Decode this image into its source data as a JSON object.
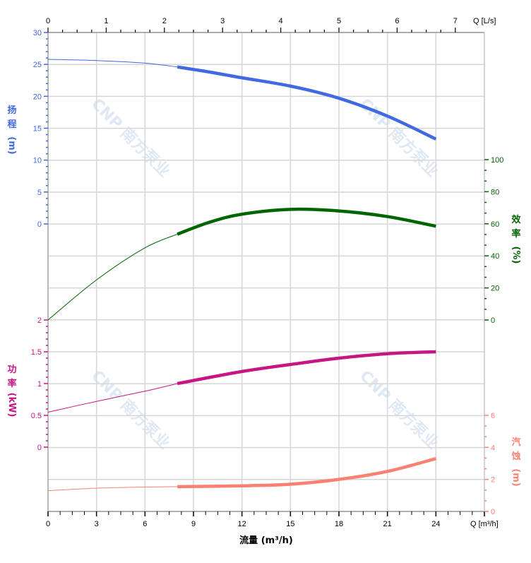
{
  "chart_data": {
    "type": "line",
    "title": "",
    "xlabel": "流量 (m³/h)",
    "x_unit_label": "Q [m³/h]",
    "x_top_unit_label": "Q [L/s]",
    "xlim": [
      0,
      27
    ],
    "x_ticks": [
      0,
      3,
      6,
      9,
      12,
      15,
      18,
      21,
      24
    ],
    "x_top_ticks": [
      0,
      1,
      2,
      3,
      4,
      5,
      6,
      7
    ],
    "grid": true,
    "watermark": "CNP 南方泵业",
    "axes": {
      "head": {
        "label_chars": [
          "扬",
          "程"
        ],
        "unit": "(m)",
        "ticks": [
          0,
          5,
          10,
          15,
          20,
          25,
          30
        ],
        "ylim": [
          0,
          30
        ],
        "color": "#4169e1",
        "side": "left"
      },
      "efficiency": {
        "label_chars": [
          "效",
          "率"
        ],
        "unit": "(%)",
        "ticks": [
          0,
          20,
          40,
          60,
          80,
          100
        ],
        "ylim": [
          0,
          100
        ],
        "color": "#006400",
        "side": "right"
      },
      "power": {
        "label_chars": [
          "功",
          "率"
        ],
        "unit": "(kW)",
        "ticks": [
          0,
          0.5,
          1,
          1.5,
          2
        ],
        "ylim": [
          0,
          2
        ],
        "color": "#c71585",
        "side": "left"
      },
      "npsh": {
        "label_chars": [
          "汽",
          "蚀"
        ],
        "unit": "(m)",
        "ticks": [
          0,
          2,
          4,
          6
        ],
        "ylim": [
          0,
          6
        ],
        "color": "#fa8072",
        "side": "right"
      }
    },
    "operating_range": [
      8,
      24
    ],
    "series": [
      {
        "axis": "head",
        "x": [
          0,
          3,
          6,
          8,
          10,
          12,
          15,
          18,
          21,
          24
        ],
        "y": [
          25.8,
          25.6,
          25.2,
          24.6,
          23.8,
          22.9,
          21.6,
          19.7,
          16.9,
          13.3
        ]
      },
      {
        "axis": "efficiency",
        "x": [
          0,
          3,
          6,
          8,
          10,
          12,
          15,
          18,
          21,
          24
        ],
        "y": [
          0,
          25,
          45,
          53.5,
          61,
          66,
          69,
          68,
          64.5,
          58.5
        ]
      },
      {
        "axis": "power",
        "x": [
          0,
          3,
          6,
          8,
          12,
          15,
          18,
          21,
          24
        ],
        "y": [
          0.55,
          0.72,
          0.88,
          1.0,
          1.19,
          1.3,
          1.4,
          1.47,
          1.5
        ]
      },
      {
        "axis": "npsh",
        "x": [
          0,
          3,
          6,
          8,
          12,
          15,
          18,
          21,
          24
        ],
        "y": [
          1.3,
          1.45,
          1.52,
          1.55,
          1.6,
          1.7,
          2.0,
          2.5,
          3.3
        ]
      }
    ]
  }
}
